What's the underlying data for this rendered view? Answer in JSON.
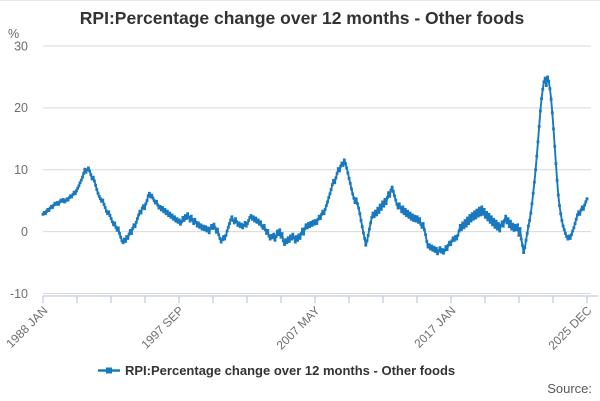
{
  "page": {
    "title": "RPI:Percentage change over 12 months - Other foods",
    "source_label": "Source:"
  },
  "chart_data": {
    "type": "line",
    "title": "RPI:Percentage change over 12 months - Other foods",
    "unit_label": "%",
    "ylabel": "%",
    "xlabel": "",
    "ylim": [
      -10,
      30
    ],
    "y_ticks": [
      -10,
      0,
      10,
      20,
      30
    ],
    "grid": "horizontal",
    "x_tick_labels": [
      "1988 JAN",
      "1997 SEP",
      "2007 MAY",
      "2017 JAN",
      "2025 DEC"
    ],
    "x_minor_ticks_total": 17,
    "x_labeled_tick_indices": [
      0,
      4,
      8,
      12,
      16
    ],
    "legend_position": "bottom-center",
    "legend": [
      {
        "label": "RPI:Percentage change over 12 months - Other foods",
        "marker": "square-on-line"
      }
    ],
    "style": {
      "line_color": "#1879bf",
      "grid_color": "#d9d9d9",
      "axis_color": "#c4cbe2",
      "tick_text_color": "#6e6e6e"
    },
    "series": [
      {
        "name": "RPI:Percentage change over 12 months - Other foods",
        "frequency": "monthly",
        "start": "1988 JAN",
        "end": "2025 DEC",
        "values": [
          2.8,
          3.1,
          2.9,
          3.3,
          3.6,
          3.4,
          3.8,
          4.1,
          3.9,
          4.3,
          4.6,
          4.4,
          4.7,
          4.4,
          4.8,
          5.1,
          4.9,
          5.2,
          4.8,
          5.0,
          5.3,
          5.1,
          5.5,
          5.8,
          5.6,
          6.0,
          6.4,
          6.1,
          6.6,
          7.0,
          7.4,
          7.9,
          8.3,
          8.8,
          9.4,
          10.1,
          9.6,
          10.0,
          10.3,
          9.8,
          9.2,
          8.5,
          8.8,
          8.2,
          7.5,
          6.8,
          6.2,
          5.7,
          5.3,
          4.9,
          5.1,
          4.4,
          3.9,
          3.3,
          2.9,
          3.2,
          2.6,
          2.1,
          1.6,
          1.1,
          1.4,
          0.7,
          0.2,
          0.6,
          -0.3,
          -0.9,
          -1.5,
          -1.8,
          -1.2,
          -1.6,
          -0.8,
          -1.1,
          -0.4,
          0.2,
          -0.3,
          0.5,
          1.1,
          0.8,
          1.5,
          2.1,
          2.7,
          3.3,
          3.0,
          3.8,
          4.2,
          3.7,
          4.5,
          5.0,
          5.8,
          6.2,
          5.6,
          5.9,
          5.4,
          5.0,
          4.6,
          4.9,
          4.3,
          3.8,
          4.1,
          3.5,
          3.9,
          3.2,
          3.6,
          2.9,
          3.3,
          2.6,
          3.0,
          2.3,
          2.7,
          2.0,
          2.4,
          1.7,
          2.1,
          1.5,
          1.9,
          1.2,
          1.6,
          2.3,
          1.8,
          2.6,
          2.1,
          2.9,
          2.3,
          1.7,
          2.5,
          1.9,
          1.3,
          2.0,
          1.5,
          0.9,
          1.4,
          0.7,
          1.1,
          0.4,
          0.9,
          0.3,
          0.8,
          0.1,
          0.6,
          -0.2,
          0.5,
          1.0,
          0.5,
          1.2,
          0.6,
          -0.1,
          0.4,
          -0.5,
          -1.1,
          -1.7,
          -1.3,
          -0.8,
          -1.2,
          -0.6,
          0.1,
          0.7,
          1.3,
          1.9,
          2.4,
          1.8,
          1.4,
          2.1,
          1.6,
          1.0,
          1.4,
          0.8,
          1.2,
          0.6,
          1.0,
          1.5,
          0.9,
          1.3,
          1.8,
          2.3,
          2.6,
          2.0,
          2.4,
          1.7,
          2.2,
          1.5,
          1.9,
          1.2,
          1.6,
          0.9,
          0.5,
          1.0,
          0.3,
          -0.3,
          0.2,
          -0.7,
          -1.2,
          -0.6,
          -1.0,
          -0.4,
          -1.4,
          -0.8,
          0.1,
          -0.5,
          0.3,
          -0.9,
          -0.3,
          -1.5,
          -2.1,
          -1.3,
          -1.8,
          -1.0,
          -1.6,
          -0.7,
          -1.2,
          -0.4,
          -1.0,
          -1.7,
          -0.8,
          -1.4,
          -0.5,
          -1.1,
          -0.3,
          0.4,
          -0.4,
          0.5,
          1.1,
          0.6,
          1.3,
          0.8,
          1.5,
          1.0,
          1.7,
          1.2,
          1.8,
          1.3,
          2.0,
          2.5,
          2.1,
          2.8,
          3.3,
          2.9,
          3.6,
          4.2,
          4.8,
          5.5,
          6.1,
          6.8,
          7.6,
          8.3,
          7.9,
          8.7,
          9.4,
          10.2,
          9.8,
          10.6,
          11.1,
          10.7,
          11.6,
          11.0,
          10.3,
          9.5,
          8.6,
          7.8,
          6.9,
          6.1,
          5.4,
          4.7,
          5.3,
          4.5,
          3.8,
          2.9,
          1.8,
          0.8,
          -0.2,
          -1.1,
          -2.2,
          -1.5,
          -0.6,
          0.4,
          1.4,
          2.3,
          3.0,
          2.4,
          3.3,
          2.7,
          3.8,
          3.1,
          4.3,
          3.6,
          4.8,
          4.1,
          5.2,
          4.5,
          5.5,
          6.3,
          5.7,
          6.7,
          7.2,
          6.5,
          5.8,
          5.1,
          4.4,
          3.8,
          4.5,
          3.9,
          3.2,
          4.0,
          2.9,
          3.6,
          2.6,
          3.3,
          2.3,
          3.0,
          2.0,
          2.7,
          1.8,
          2.5,
          1.7,
          2.4,
          1.5,
          2.1,
          1.2,
          0.7,
          1.3,
          0.3,
          -0.5,
          -1.6,
          -2.5,
          -2.1,
          -2.8,
          -2.3,
          -3.0,
          -2.5,
          -3.2,
          -2.7,
          -3.6,
          -3.1,
          -2.6,
          -3.3,
          -2.9,
          -3.5,
          -3.0,
          -2.4,
          -2.9,
          -2.2,
          -1.7,
          -2.1,
          -1.5,
          -1.0,
          -1.4,
          -0.8,
          -1.2,
          -0.6,
          0.1,
          1.0,
          0.3,
          1.4,
          0.6,
          1.8,
          0.9,
          2.2,
          1.3,
          2.6,
          1.7,
          2.9,
          2.0,
          3.2,
          2.2,
          3.5,
          2.5,
          3.8,
          2.7,
          4.0,
          2.8,
          3.6,
          2.3,
          3.1,
          1.9,
          2.8,
          1.5,
          2.4,
          1.1,
          2.0,
          0.7,
          1.7,
          0.4,
          1.3,
          0.1,
          1.0,
          1.6,
          0.9,
          1.8,
          2.5,
          1.4,
          2.1,
          0.8,
          1.7,
          0.4,
          1.2,
          0.2,
          1.0,
          0.3,
          1.1,
          -0.6,
          0.5,
          -1.2,
          -2.2,
          -3.4,
          -2.6,
          -1.4,
          -0.3,
          0.9,
          1.8,
          3.0,
          4.5,
          6.2,
          8.0,
          10.0,
          12.2,
          14.5,
          17.0,
          19.5,
          21.5,
          23.0,
          24.2,
          24.8,
          23.6,
          25.0,
          24.3,
          23.1,
          21.4,
          19.2,
          16.6,
          13.8,
          11.0,
          8.3,
          5.9,
          4.2,
          2.9,
          1.8,
          0.9,
          0.3,
          -0.3,
          -0.8,
          -1.2,
          -0.7,
          -1.1,
          -0.5,
          0.1,
          0.6,
          1.3,
          2.0,
          2.7,
          3.2,
          2.8,
          3.5,
          4.0,
          3.6,
          4.3,
          4.8,
          5.3
        ]
      }
    ]
  }
}
